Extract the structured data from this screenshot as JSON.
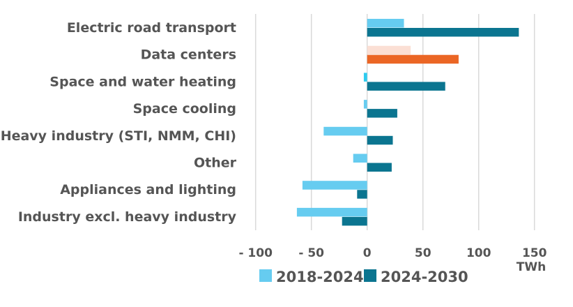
{
  "chart_data": {
    "type": "bar",
    "orientation": "horizontal",
    "categories": [
      "Electric road transport",
      "Data centers",
      "Space and water heating",
      "Space cooling",
      "Heavy industry (STI, NMM, CHI)",
      "Other",
      "Appliances and lighting",
      "Industry excl. heavy industry"
    ],
    "series": [
      {
        "name": "2018-2024",
        "color": "#66ccf0",
        "values": [
          33,
          39,
          -3,
          -3,
          -39,
          -12.5,
          -58,
          -63
        ]
      },
      {
        "name": "2024-2030",
        "color": "#0b7590",
        "values": [
          136,
          82,
          70,
          27,
          23,
          22,
          -9,
          -22.5
        ]
      }
    ],
    "highlight": {
      "category": "Data centers",
      "colors": {
        "2018-2024": "#fbdfd4",
        "2024-2030": "#eb6625"
      }
    },
    "xlim": [
      -100,
      150
    ],
    "xticks": [
      -100,
      -50,
      0,
      50,
      100,
      150
    ],
    "xtick_labels": [
      "- 100",
      "- 50",
      "0",
      "50",
      "100",
      "150"
    ],
    "xlabel": "TWh",
    "grid": "vertical",
    "legend": "bottom"
  }
}
